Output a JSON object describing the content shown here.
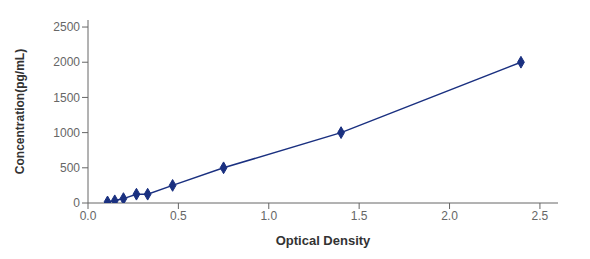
{
  "chart_data": {
    "type": "line",
    "xlabel": "Optical Density",
    "ylabel": "Concentration(pg/mL)",
    "x": [
      0.108,
      0.148,
      0.196,
      0.268,
      0.33,
      0.468,
      0.75,
      1.4,
      2.395
    ],
    "values": [
      15.6,
      31.25,
      62.5,
      125,
      125,
      250,
      500,
      1000,
      2000
    ],
    "color": "#1a3080",
    "marker": "diamond",
    "xlim": [
      0.0,
      2.6
    ],
    "ylim": [
      0,
      2600
    ],
    "xticks": [
      {
        "value": 0,
        "label": "0.0"
      },
      0.5,
      {
        "value": 1.0,
        "label": "1.0"
      },
      1.5,
      {
        "value": 2.0,
        "label": "2.0"
      },
      2.5
    ],
    "yticks": [
      0,
      500,
      1000,
      1500,
      2000,
      2500
    ]
  }
}
